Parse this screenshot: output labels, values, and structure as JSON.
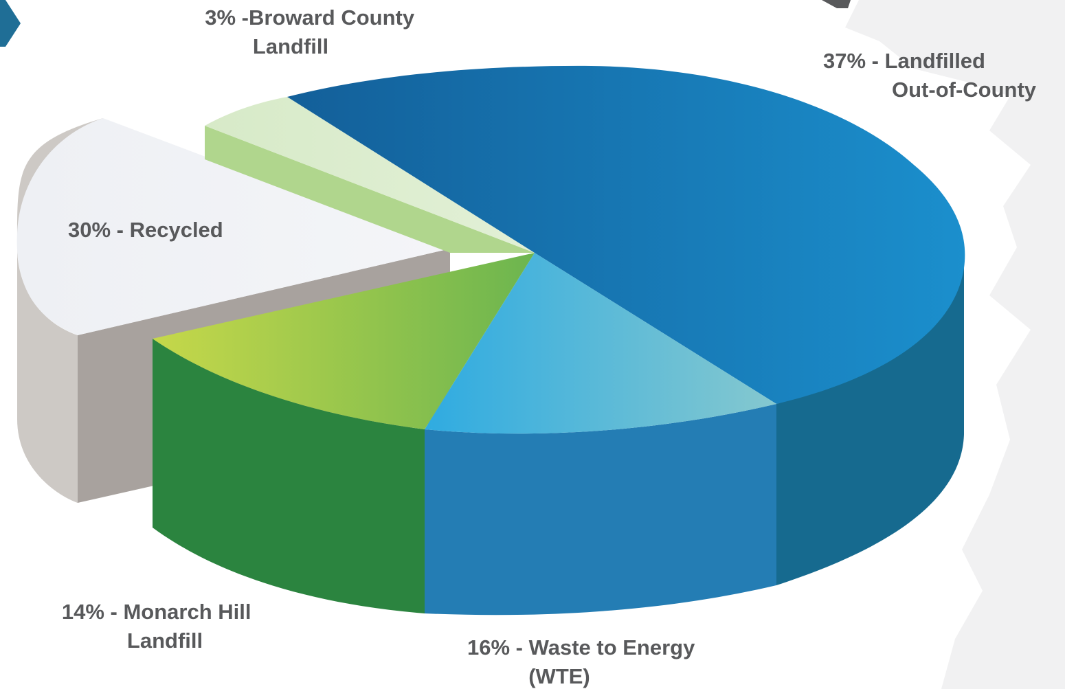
{
  "chart_data": {
    "type": "pie",
    "style": "3d-exploded",
    "slices": [
      {
        "label_lines": [
          "37% - Landfilled",
          "Out-of-County"
        ],
        "value": 37,
        "colors": {
          "top_light": "#1b8fcd",
          "top_dark": "#135f99",
          "side": "#166a8f"
        }
      },
      {
        "label_lines": [
          "16% - Waste to Energy",
          "(WTE)"
        ],
        "value": 16,
        "colors": {
          "top_light": "#85c8cf",
          "top_dark": "#2fabe1",
          "side": "#247db4"
        }
      },
      {
        "label_lines": [
          "14% - Monarch Hill",
          "Landfill"
        ],
        "value": 14,
        "colors": {
          "top_light": "#c6d84a",
          "top_dark": "#6cb54f",
          "side": "#2b843f"
        }
      },
      {
        "label_lines": [
          "30% - Recycled"
        ],
        "value": 30,
        "colors": {
          "top_light": "#f4f5f8",
          "top_dark": "#eef0f4",
          "side": "#a8a29e",
          "side_light": "#cdc9c5"
        }
      },
      {
        "label_lines": [
          "3% -Broward County",
          "Landfill"
        ],
        "value": 3,
        "colors": {
          "top_light": "#e2f0d6",
          "top_dark": "#d7eac8",
          "side": "#b0d68d"
        }
      }
    ]
  }
}
